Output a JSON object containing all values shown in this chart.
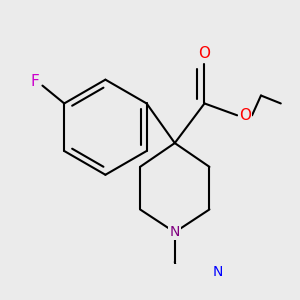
{
  "background_color": "#ebebeb",
  "line_color": "#000000",
  "bond_width": 1.5,
  "atom_colors": {
    "F": "#cc00cc",
    "O": "#ff0000",
    "N_piperidine": "#800080",
    "N_pyridine": "#0000ff"
  }
}
